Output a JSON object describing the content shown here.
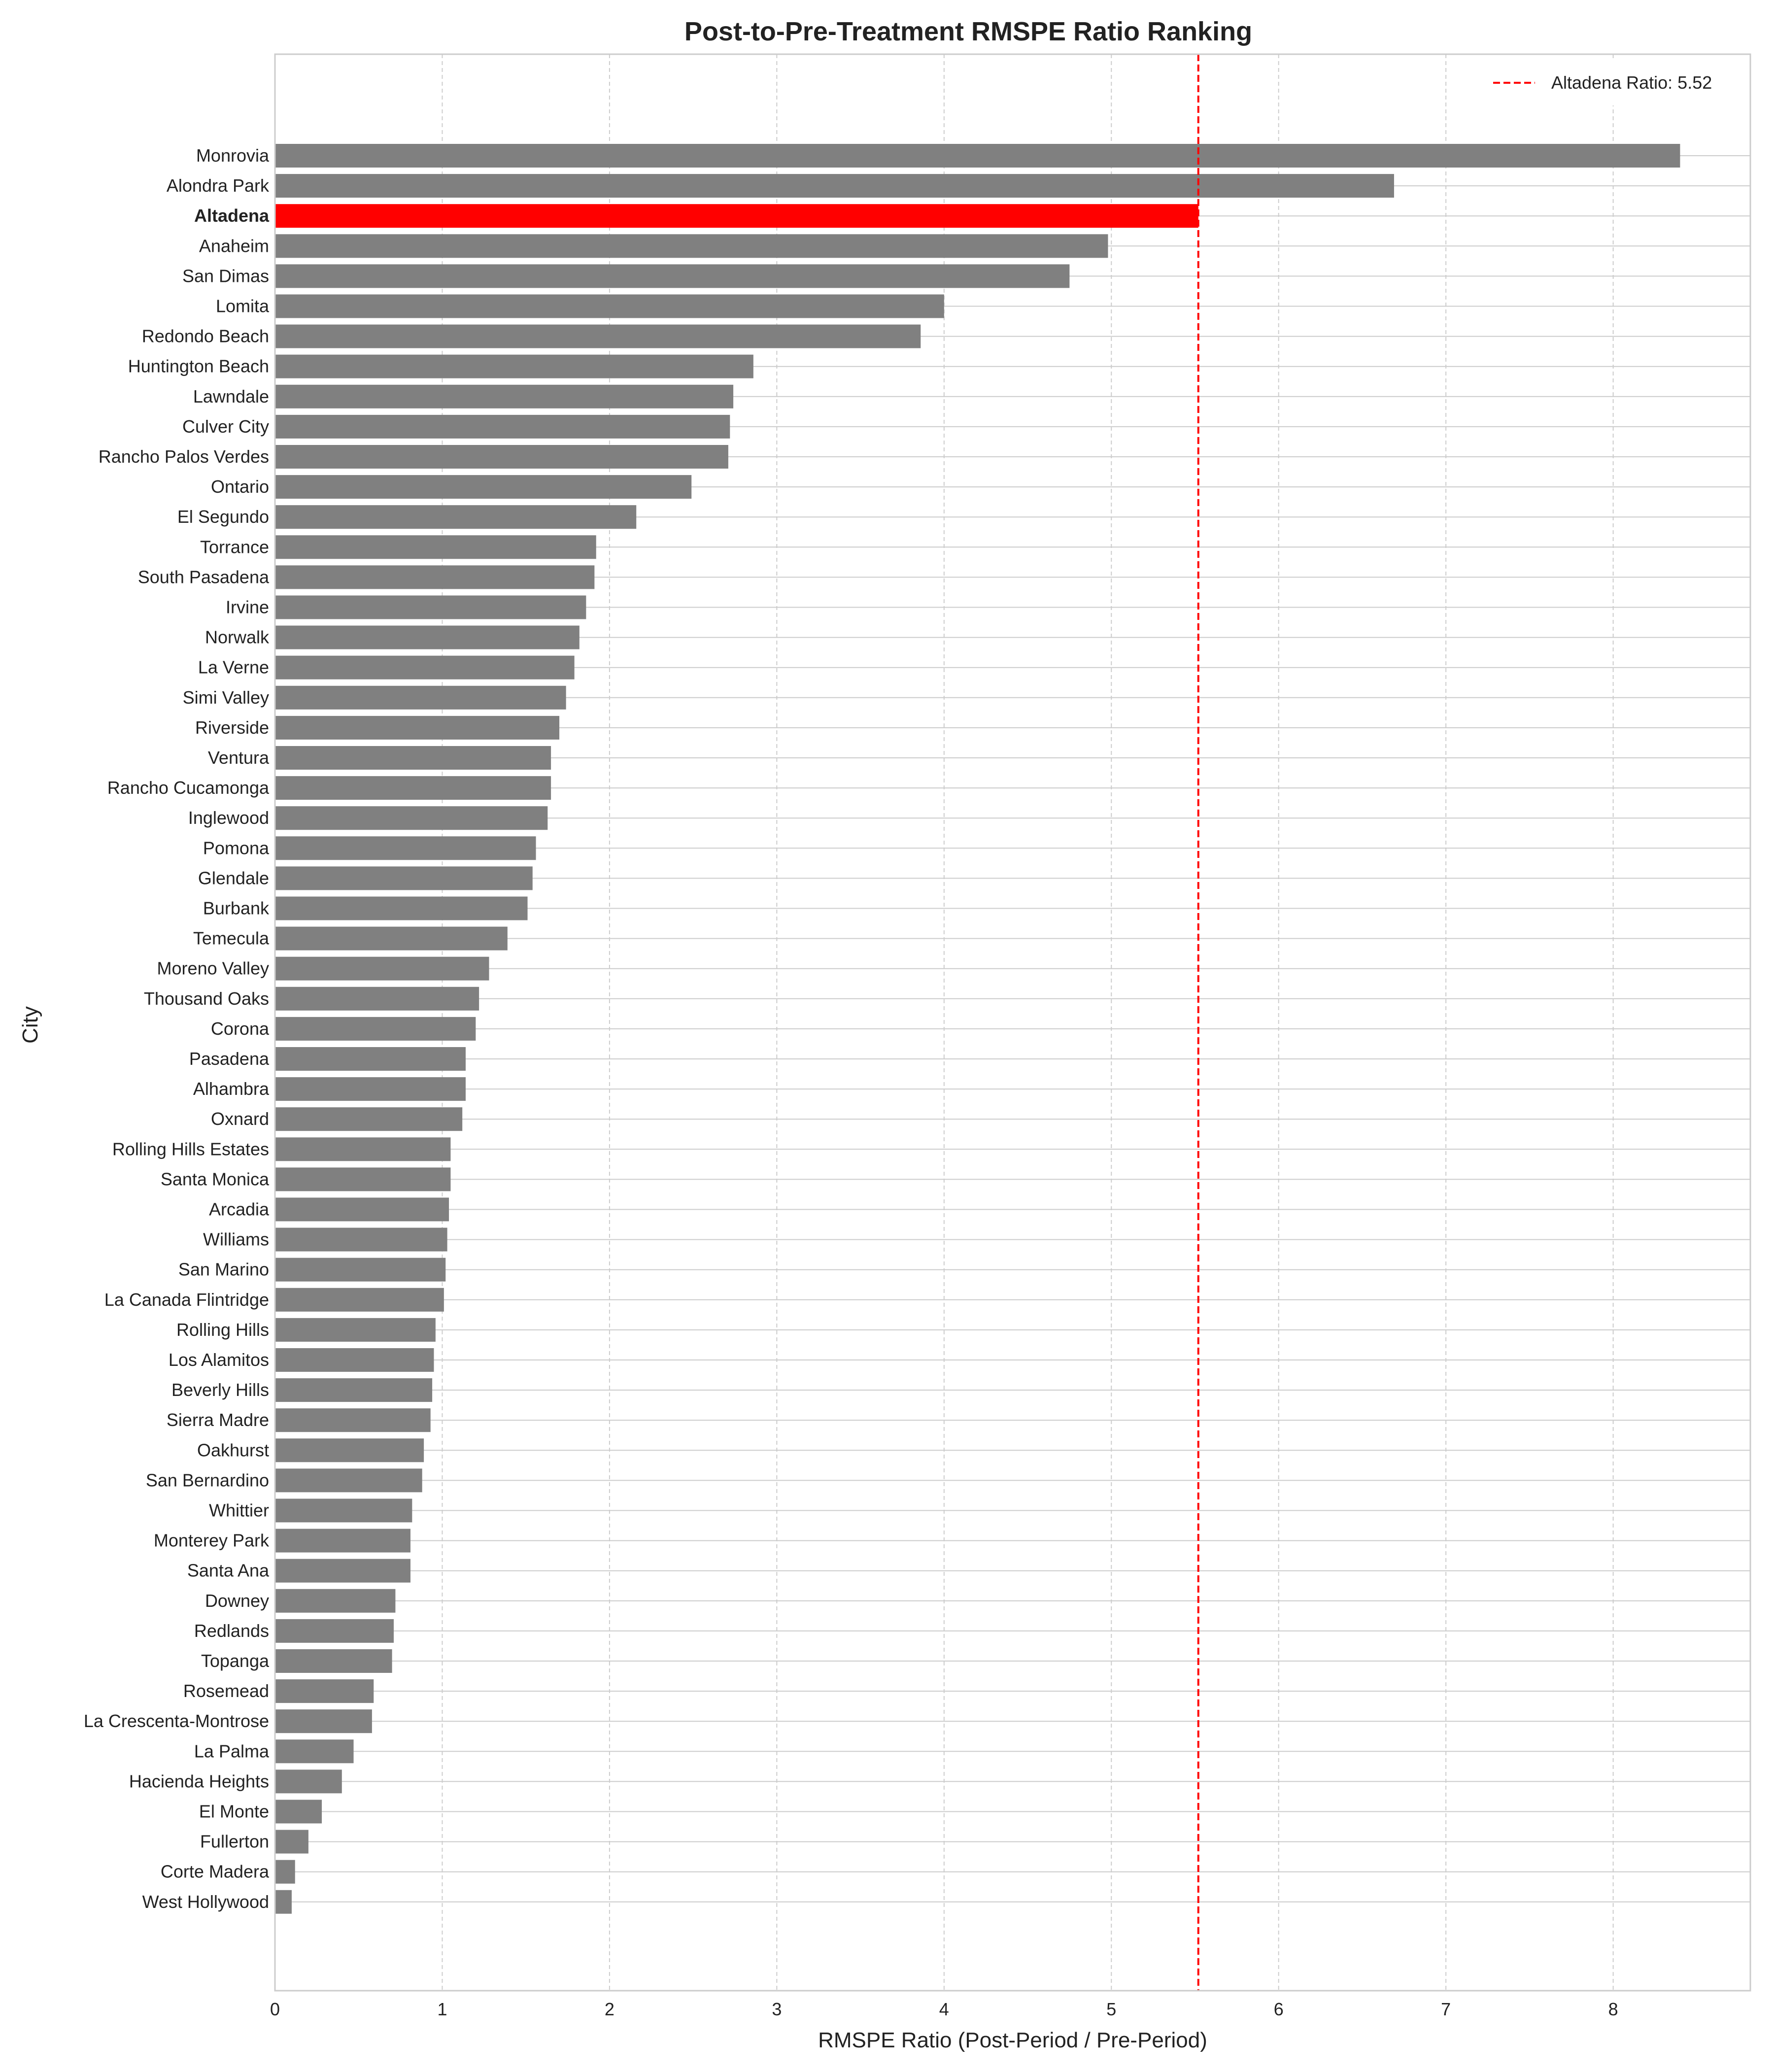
{
  "chart_data": {
    "type": "bar",
    "orientation": "horizontal",
    "title": "Post-to-Pre-Treatment RMSPE Ratio Ranking",
    "xlabel": "RMSPE Ratio (Post-Period / Pre-Period)",
    "ylabel": "City",
    "xlim": [
      0,
      8.82
    ],
    "xticks": [
      0,
      1,
      2,
      3,
      4,
      5,
      6,
      7,
      8
    ],
    "grid": true,
    "legend_position": "top-right",
    "bar_color": "#808080",
    "highlight_color": "#ff0000",
    "highlight_category": "Altadena",
    "reference_line": {
      "value": 5.52,
      "label": "Altadena Ratio: 5.52",
      "color": "#ff0000",
      "style": "dashed"
    },
    "categories": [
      "Monrovia",
      "Alondra Park",
      "Altadena",
      "Anaheim",
      "San Dimas",
      "Lomita",
      "Redondo Beach",
      "Huntington Beach",
      "Lawndale",
      "Culver City",
      "Rancho Palos Verdes",
      "Ontario",
      "El Segundo",
      "Torrance",
      "South Pasadena",
      "Irvine",
      "Norwalk",
      "La Verne",
      "Simi Valley",
      "Riverside",
      "Ventura",
      "Rancho Cucamonga",
      "Inglewood",
      "Pomona",
      "Glendale",
      "Burbank",
      "Temecula",
      "Moreno Valley",
      "Thousand Oaks",
      "Corona",
      "Pasadena",
      "Alhambra",
      "Oxnard",
      "Rolling Hills Estates",
      "Santa Monica",
      "Arcadia",
      "Williams",
      "San Marino",
      "La Canada Flintridge",
      "Rolling Hills",
      "Los Alamitos",
      "Beverly Hills",
      "Sierra Madre",
      "Oakhurst",
      "San Bernardino",
      "Whittier",
      "Monterey Park",
      "Santa Ana",
      "Downey",
      "Redlands",
      "Topanga",
      "Rosemead",
      "La Crescenta-Montrose",
      "La Palma",
      "Hacienda Heights",
      "El Monte",
      "Fullerton",
      "Corte Madera",
      "West Hollywood"
    ],
    "values": [
      8.4,
      6.69,
      5.52,
      4.98,
      4.75,
      4.0,
      3.86,
      2.86,
      2.74,
      2.72,
      2.71,
      2.49,
      2.16,
      1.92,
      1.91,
      1.86,
      1.82,
      1.79,
      1.74,
      1.7,
      1.65,
      1.65,
      1.63,
      1.56,
      1.54,
      1.51,
      1.39,
      1.28,
      1.22,
      1.2,
      1.14,
      1.14,
      1.12,
      1.05,
      1.05,
      1.04,
      1.03,
      1.02,
      1.01,
      0.96,
      0.95,
      0.94,
      0.93,
      0.89,
      0.88,
      0.82,
      0.81,
      0.81,
      0.72,
      0.71,
      0.7,
      0.59,
      0.58,
      0.47,
      0.4,
      0.28,
      0.2,
      0.12,
      0.1
    ]
  }
}
